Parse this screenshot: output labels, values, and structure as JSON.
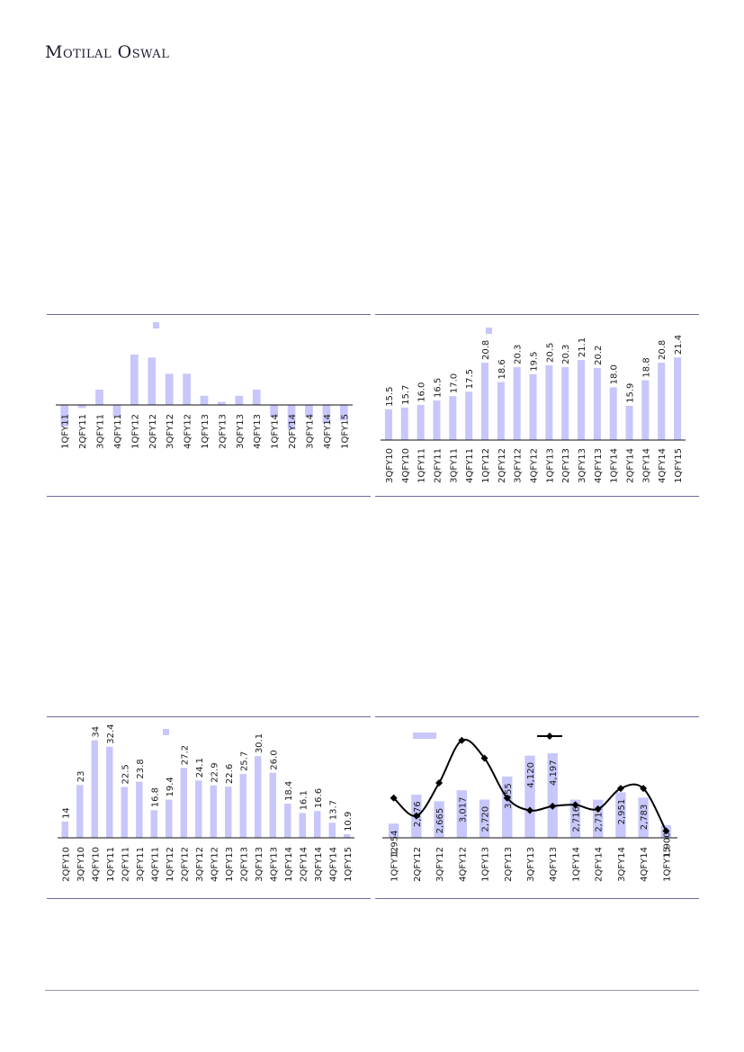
{
  "header": {
    "brand": "Motilal Oswal"
  },
  "colors": {
    "bar": "#c7c7fb",
    "line": "#000000",
    "rule": "#6b6b9e"
  },
  "chart_data": [
    {
      "type": "bar",
      "categories": [
        "1QFY11",
        "2QFY11",
        "3QFY11",
        "4QFY11",
        "1QFY12",
        "2QFY12",
        "3QFY12",
        "4QFY12",
        "1QFY13",
        "2QFY13",
        "3QFY13",
        "4QFY13",
        "1QFY14",
        "2QFY14",
        "3QFY14",
        "4QFY14",
        "1QFY15"
      ],
      "values": [
        -7,
        -1,
        5,
        -4,
        16.5,
        15.5,
        10.2,
        10.2,
        3,
        1,
        3,
        5,
        -4,
        -8,
        -4,
        -6,
        -5
      ],
      "ylim": [
        -11,
        25
      ],
      "legend": "top"
    },
    {
      "type": "bar",
      "categories": [
        "3QFY10",
        "4QFY10",
        "1QFY11",
        "2QFY11",
        "3QFY11",
        "4QFY11",
        "1QFY12",
        "2QFY12",
        "3QFY12",
        "4QFY12",
        "1QFY13",
        "2QFY13",
        "3QFY13",
        "4QFY13",
        "1QFY14",
        "2QFY14",
        "3QFY14",
        "4QFY14",
        "1QFY15"
      ],
      "values": [
        15.5,
        15.7,
        16.0,
        16.5,
        17.0,
        17.5,
        20.8,
        18.6,
        20.3,
        19.5,
        20.5,
        20.3,
        21.1,
        20.2,
        18.0,
        15.9,
        18.8,
        20.8,
        21.4
      ],
      "data_labels": [
        "15.5",
        "15.7",
        "16.0",
        "16.5",
        "17.0",
        "17.5",
        "20.8",
        "18.6",
        "20.3",
        "19.5",
        "20.5",
        "20.3",
        "21.1",
        "20.2",
        "18.0",
        "15.9",
        "18.8",
        "20.8",
        "21.4"
      ],
      "ylim": [
        12,
        25
      ],
      "legend": "top"
    },
    {
      "type": "bar",
      "categories": [
        "2QFY10",
        "3QFY10",
        "4QFY10",
        "1QFY11",
        "2QFY11",
        "3QFY11",
        "4QFY11",
        "1QFY12",
        "2QFY12",
        "3QFY12",
        "4QFY12",
        "1QFY13",
        "2QFY13",
        "3QFY13",
        "4QFY13",
        "1QFY14",
        "2QFY14",
        "3QFY14",
        "4QFY14",
        "1QFY15"
      ],
      "values": [
        14,
        23,
        34,
        32.4,
        22.5,
        23.8,
        16.8,
        19.4,
        27.2,
        24.1,
        22.9,
        22.6,
        25.7,
        30.1,
        26.0,
        18.4,
        16.1,
        16.6,
        13.7,
        10.9
      ],
      "data_labels": [
        "14",
        "23",
        "34",
        "32.4",
        "22.5",
        "23.8",
        "16.8",
        "19.4",
        "27.2",
        "24.1",
        "22.9",
        "22.6",
        "25.7",
        "30.1",
        "26.0",
        "18.4",
        "16.1",
        "16.6",
        "13.7",
        "10.9"
      ],
      "ylim": [
        10,
        37
      ],
      "legend": "top"
    },
    {
      "type": "bar",
      "categories": [
        "1QFY12",
        "2QFY12",
        "3QFY12",
        "4QFY12",
        "1QFY13",
        "2QFY13",
        "3QFY13",
        "4QFY13",
        "1QFY14",
        "2QFY14",
        "3QFY14",
        "4QFY14",
        "1QFY15"
      ],
      "values": [
        1954,
        2876,
        2665,
        3017,
        2720,
        3455,
        4120,
        4197,
        2716,
        2714,
        2951,
        2783,
        1900
      ],
      "data_labels": [
        "1,954",
        "2,876",
        "2,665",
        "3,017",
        "2,720",
        "3,455",
        "4,120",
        "4,197",
        "2,716",
        "2,714",
        "2,951",
        "2,783",
        "1,900"
      ],
      "series_line": [
        9,
        -4,
        20,
        51,
        38,
        9,
        0,
        3,
        4,
        1,
        16,
        16,
        -15
      ],
      "ylim_bars": [
        1500,
        5000
      ],
      "ylim_line": [
        -20,
        60
      ],
      "legend": "top"
    }
  ]
}
